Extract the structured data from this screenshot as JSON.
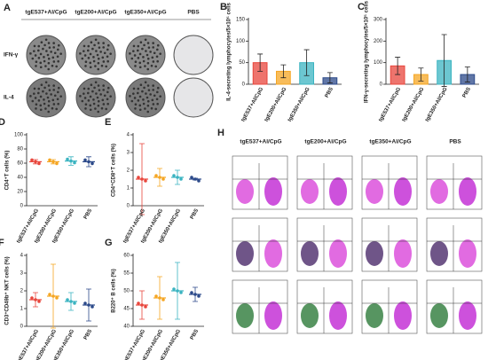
{
  "elispot": {
    "panel": "A",
    "columns": [
      "tgE537+Al/CpG",
      "tgE200+Al/CpG",
      "tgE350+Al/CpG",
      "PBS"
    ],
    "rows": [
      "IFN-γ",
      "IL-4"
    ]
  },
  "flow": {
    "panel": "H",
    "columns": [
      "tgE537+Al/CpG",
      "tgE200+Al/CpG",
      "tgE350+Al/CpG",
      "PBS"
    ]
  },
  "chart_data": [
    {
      "type": "bar",
      "panel": "B",
      "ylabel": "IL-4-secreting lymphocytes/5×10⁵ cells",
      "categories": [
        "tgE537+Al/CpG",
        "tgE200+Al/CpG",
        "tgE350+Al/CpG",
        "PBS"
      ],
      "values": [
        50,
        30,
        50,
        15
      ],
      "errors": [
        20,
        15,
        30,
        12
      ],
      "colors": [
        "#e8463c",
        "#f5a623",
        "#3bb4c1",
        "#2c4a8a"
      ],
      "ylim": [
        0,
        150
      ],
      "yticks": [
        0,
        50,
        100,
        150
      ]
    },
    {
      "type": "bar",
      "panel": "C",
      "ylabel": "IFN-γ-secreting lymphocytes/5×10⁵ cells",
      "categories": [
        "tgE537+Al/CpG",
        "tgE200+Al/CpG",
        "tgE350+Al/CpG",
        "PBS"
      ],
      "values": [
        85,
        45,
        110,
        45
      ],
      "errors": [
        40,
        30,
        120,
        35
      ],
      "colors": [
        "#e8463c",
        "#f5a623",
        "#3bb4c1",
        "#2c4a8a"
      ],
      "ylim": [
        0,
        300
      ],
      "yticks": [
        0,
        100,
        200,
        300
      ]
    },
    {
      "type": "dot",
      "panel": "D",
      "ylabel": "CD4⁺T cells (%)",
      "categories": [
        "tgE537+Al/CpG",
        "tgE200+Al/CpG",
        "tgE350+Al/CpG",
        "PBS"
      ],
      "values": [
        62,
        62,
        63,
        62
      ],
      "errors": [
        3,
        3,
        6,
        7
      ],
      "colors": [
        "#e8463c",
        "#f5a623",
        "#3bb4c1",
        "#2c4a8a"
      ],
      "ylim": [
        0,
        100
      ],
      "yticks": [
        0,
        20,
        40,
        60,
        80,
        100
      ]
    },
    {
      "type": "dot",
      "panel": "E",
      "ylabel": "CD4⁺CD8⁺T cells (%)",
      "categories": [
        "tgE537+Al/CpG",
        "tgE200+Al/CpG",
        "tgE350+Al/CpG",
        "PBS"
      ],
      "values": [
        1.5,
        1.6,
        1.6,
        1.5
      ],
      "errors": [
        2.0,
        0.5,
        0.4,
        0.05
      ],
      "colors": [
        "#e8463c",
        "#f5a623",
        "#3bb4c1",
        "#2c4a8a"
      ],
      "ylim": [
        0,
        4
      ],
      "yticks": [
        0,
        1,
        2,
        3,
        4
      ]
    },
    {
      "type": "dot",
      "panel": "F",
      "ylabel": "CD3⁺CD49b⁺ NKT cells (%)",
      "categories": [
        "tgE537+Al/CpG",
        "tgE200+Al/CpG",
        "tgE350+Al/CpG",
        "PBS"
      ],
      "values": [
        1.5,
        1.7,
        1.4,
        1.2
      ],
      "errors": [
        0.4,
        1.8,
        0.5,
        0.9
      ],
      "colors": [
        "#e8463c",
        "#f5a623",
        "#3bb4c1",
        "#2c4a8a"
      ],
      "ylim": [
        0,
        4
      ],
      "yticks": [
        0,
        1,
        2,
        3,
        4
      ]
    },
    {
      "type": "dot",
      "panel": "G",
      "ylabel": "B220⁺ B cells (%)",
      "categories": [
        "tgE537+Al/CpG",
        "tgE200+Al/CpG",
        "tgE350+Al/CpG",
        "PBS"
      ],
      "values": [
        46,
        48,
        50,
        49
      ],
      "errors": [
        4,
        6,
        8,
        2
      ],
      "colors": [
        "#e8463c",
        "#f5a623",
        "#3bb4c1",
        "#2c4a8a"
      ],
      "ylim": [
        40,
        60
      ],
      "yticks": [
        40,
        45,
        50,
        55,
        60
      ]
    }
  ]
}
